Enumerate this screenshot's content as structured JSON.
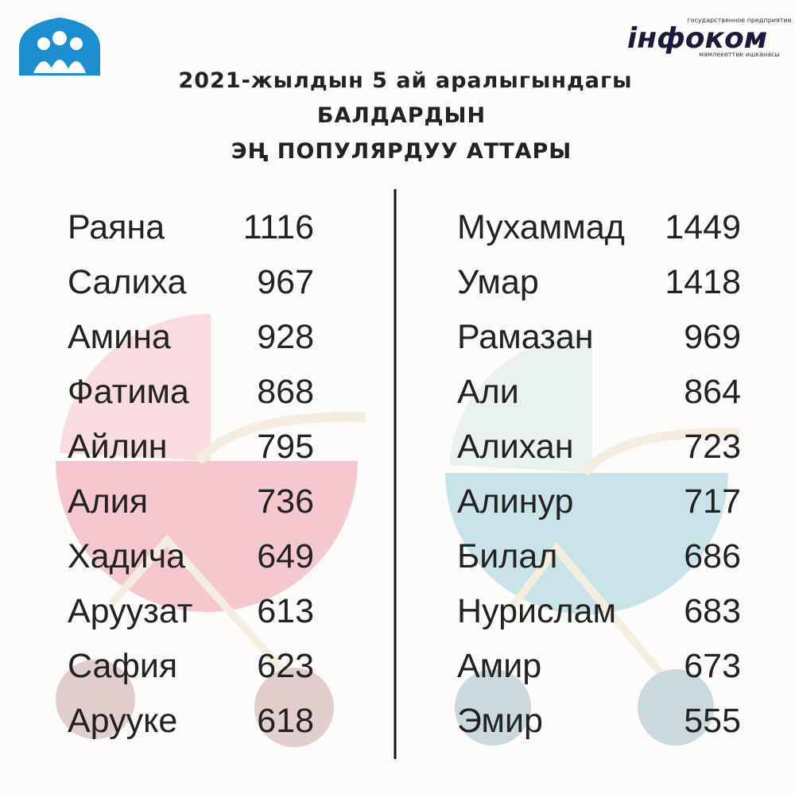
{
  "header": {
    "title": [
      "2021-жылдын 5 ай аралыгындагы",
      "БАЛДАРДЫН",
      "ЭҢ ПОПУЛЯРДУУ АТТАРЫ"
    ],
    "logo": {
      "top_text": "государственное предприятие",
      "name": "інфоком",
      "bottom_text": "мамлекеттик ишканасы"
    }
  },
  "lists": [
    {
      "rows": [
        [
          "Раяна",
          1116
        ],
        [
          "Салиха",
          967
        ],
        [
          "Амина",
          928
        ],
        [
          "Фатима",
          868
        ],
        [
          "Айлин",
          795
        ],
        [
          "Алия",
          736
        ],
        [
          "Хадича",
          649
        ],
        [
          "Аруузат",
          613
        ],
        [
          "Сафия",
          623
        ],
        [
          "Арууке",
          618
        ]
      ]
    },
    {
      "rows": [
        [
          "Мухаммад",
          1449
        ],
        [
          "Умар",
          1418
        ],
        [
          "Рамазан",
          969
        ],
        [
          "Али",
          864
        ],
        [
          "Алихан",
          723
        ],
        [
          "Алинур",
          717
        ],
        [
          "Билал",
          686
        ],
        [
          "Нурислам",
          683
        ],
        [
          "Амир",
          673
        ],
        [
          "Эмир",
          555
        ]
      ]
    }
  ]
}
